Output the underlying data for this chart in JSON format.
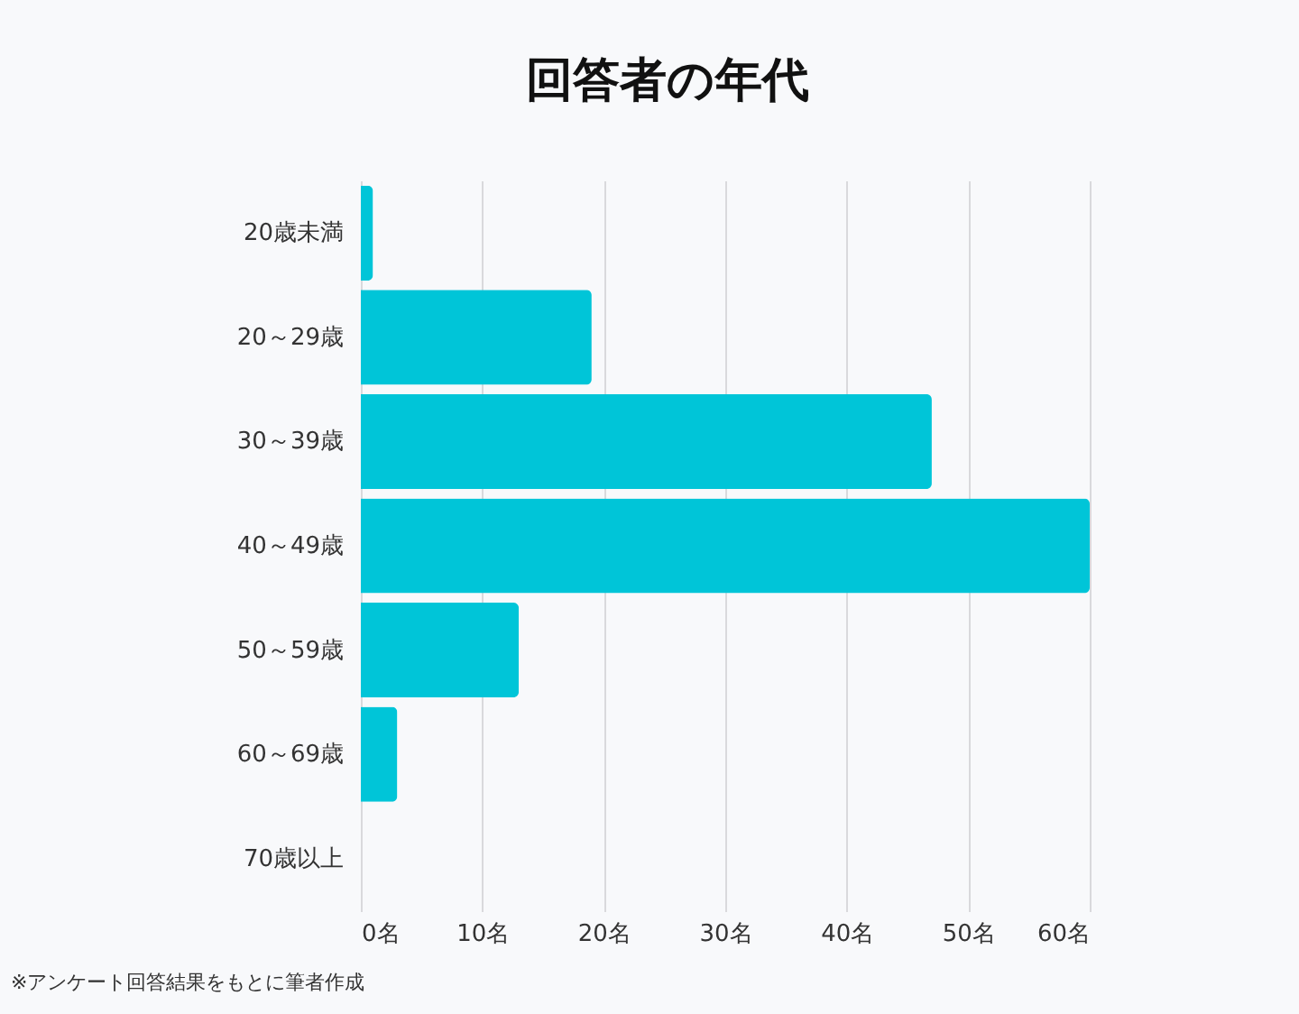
{
  "chart_data": {
    "type": "bar",
    "orientation": "horizontal",
    "title": "回答者の年代",
    "categories": [
      "20歳未満",
      "20～29歳",
      "30～39歳",
      "40～49歳",
      "50～59歳",
      "60～69歳",
      "70歳以上"
    ],
    "values": [
      1,
      19,
      47,
      60,
      13,
      3,
      0
    ],
    "color": "#00c5d8",
    "xlim": [
      0,
      60
    ],
    "xticks": [
      {
        "value": 0,
        "label": "0名"
      },
      {
        "value": 10,
        "label": "10名"
      },
      {
        "value": 20,
        "label": "20名"
      },
      {
        "value": 30,
        "label": "30名"
      },
      {
        "value": 40,
        "label": "40名"
      },
      {
        "value": 50,
        "label": "50名"
      },
      {
        "value": 60,
        "label": "60名"
      }
    ],
    "grid": "x",
    "annotations": [
      "※アンケート回答結果をもとに筆者作成"
    ]
  }
}
